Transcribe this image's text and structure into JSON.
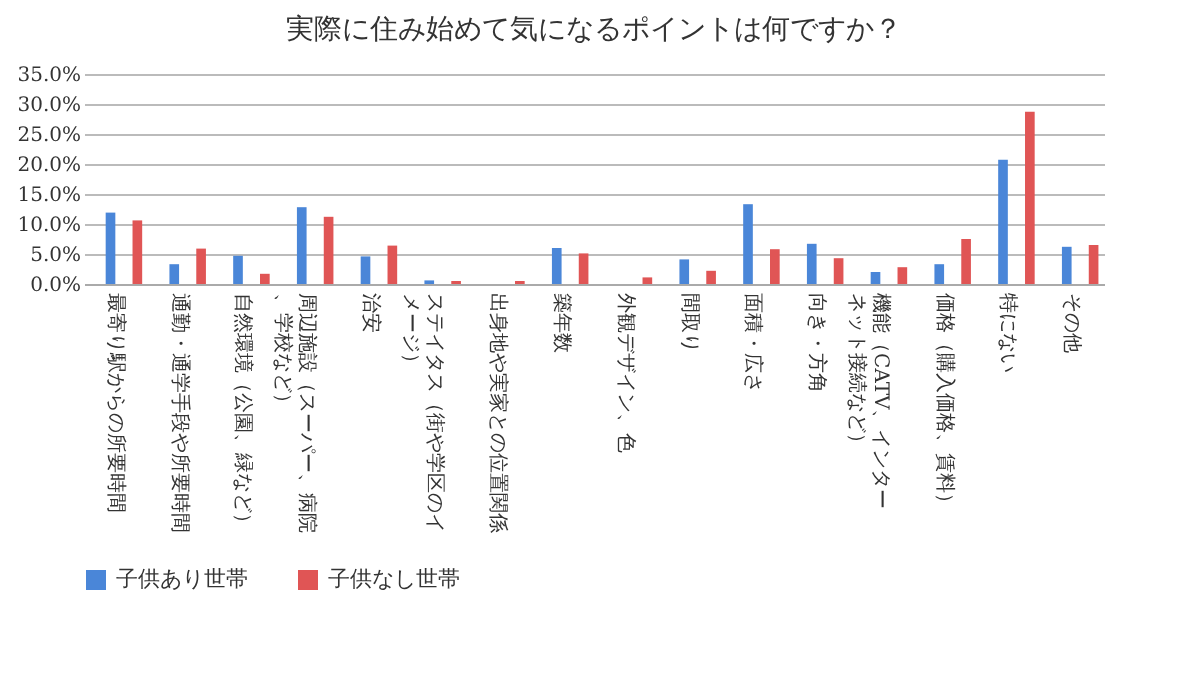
{
  "chart_data": {
    "type": "bar",
    "title": "実際に住み始めて気になるポイントは何ですか？",
    "categories": [
      "最寄り駅からの所要時間",
      "通勤・通学手段や所要時間",
      "自然環境（公園、緑など）",
      "周辺施設（スーパー、病院、学校など）",
      "治安",
      "ステイタス（街や学区のイメージ）",
      "出身地や実家との位置関係",
      "築年数",
      "外観デザイン、色",
      "間取り",
      "面積・広さ",
      "向き・方角",
      "機能（CATV、インターネット接続など）",
      "価格（購入価格、賃料）",
      "特にない",
      "その他"
    ],
    "series": [
      {
        "name": "子供あり世帯",
        "color": "#4a86d8",
        "values": [
          11.9,
          3.3,
          4.7,
          12.8,
          4.6,
          0.6,
          0,
          6.0,
          0,
          4.1,
          13.3,
          6.7,
          2.0,
          3.3,
          20.7,
          6.2
        ]
      },
      {
        "name": "子供なし世帯",
        "color": "#e05555",
        "values": [
          10.6,
          5.9,
          1.7,
          11.2,
          6.4,
          0.5,
          0.5,
          5.1,
          1.1,
          2.2,
          5.8,
          4.3,
          2.8,
          7.5,
          28.7,
          6.5
        ]
      }
    ],
    "ylim": [
      0,
      35
    ],
    "yticks": [
      {
        "value": 0,
        "label": "0.0%"
      },
      {
        "value": 5,
        "label": "5.0%"
      },
      {
        "value": 10,
        "label": "10.0%"
      },
      {
        "value": 15,
        "label": "15.0%"
      },
      {
        "value": 20,
        "label": "20.0%"
      },
      {
        "value": 25,
        "label": "25.0%"
      },
      {
        "value": 30,
        "label": "30.0%"
      },
      {
        "value": 35,
        "label": "35.0%"
      }
    ],
    "grid": "y",
    "legend": "bottom"
  }
}
